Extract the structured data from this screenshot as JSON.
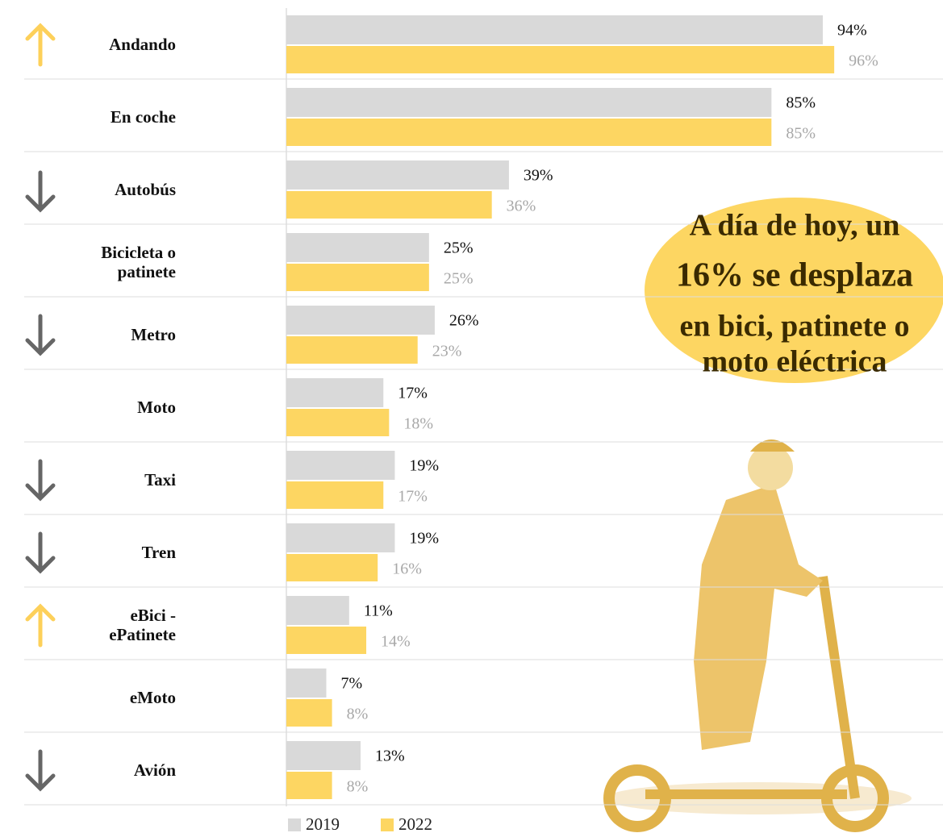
{
  "chart_data": {
    "type": "bar",
    "orientation": "horizontal",
    "categories": [
      "Andando",
      "En coche",
      "Autobús",
      "Bicicleta o patinete",
      "Metro",
      "Moto",
      "Taxi",
      "Tren",
      "eBici - ePatinete",
      "eMoto",
      "Avión"
    ],
    "series": [
      {
        "name": "2019",
        "color": "#d9d9d9",
        "label_color": "#111111",
        "values": [
          94,
          85,
          39,
          25,
          26,
          17,
          19,
          19,
          11,
          7,
          13
        ],
        "value_labels": [
          "94%",
          "85%",
          "39%",
          "25%",
          "26%",
          "17%",
          "19%",
          "19%",
          "11%",
          "7%",
          "13%"
        ]
      },
      {
        "name": "2022",
        "color": "#fdd662",
        "label_color": "#a8a8a8",
        "values": [
          96,
          85,
          36,
          25,
          23,
          18,
          17,
          16,
          14,
          8,
          8
        ],
        "value_labels": [
          "96%",
          "85%",
          "36%",
          "25%",
          "23%",
          "18%",
          "17%",
          "16%",
          "14%",
          "8%",
          "8%"
        ]
      }
    ],
    "xlim": [
      0,
      100
    ],
    "annotation": [
      "A día de hoy, un",
      "16% se desplaza",
      "en bici, patinete o",
      "moto eléctrica"
    ]
  }
}
